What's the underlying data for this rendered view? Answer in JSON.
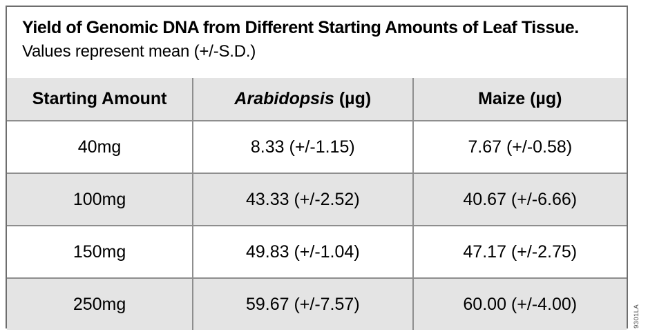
{
  "figure": {
    "title": "Yield of Genomic DNA from Different Starting Amounts of Leaf Tissue.",
    "subtitle": "Values represent mean (+/-S.D.)",
    "side_code": "9301LA"
  },
  "colors": {
    "row_shade": "#e4e4e4",
    "grid_line": "#8e8e8e",
    "outer_border": "#6e6e6e",
    "text": "#000000"
  },
  "chart_data": {
    "type": "table",
    "title": "Yield of Genomic DNA from Different Starting Amounts of Leaf Tissue.",
    "subtitle": "Values represent mean (+/-S.D.)",
    "columns": [
      {
        "text": "Starting Amount"
      },
      {
        "italic_text": "Arabidopsis",
        "text": " (µg)"
      },
      {
        "text": "Maize (µg)"
      }
    ],
    "rows": [
      {
        "starting_amount": "40mg",
        "arabidopsis": "8.33 (+/-1.15)",
        "maize": "7.67 (+/-0.58)"
      },
      {
        "starting_amount": "100mg",
        "arabidopsis": "43.33 (+/-2.52)",
        "maize": "40.67 (+/-6.66)"
      },
      {
        "starting_amount": "150mg",
        "arabidopsis": "49.83 (+/-1.04)",
        "maize": "47.17 (+/-2.75)"
      },
      {
        "starting_amount": "250mg",
        "arabidopsis": "59.67 (+/-7.57)",
        "maize": "60.00 (+/-4.00)"
      }
    ]
  }
}
